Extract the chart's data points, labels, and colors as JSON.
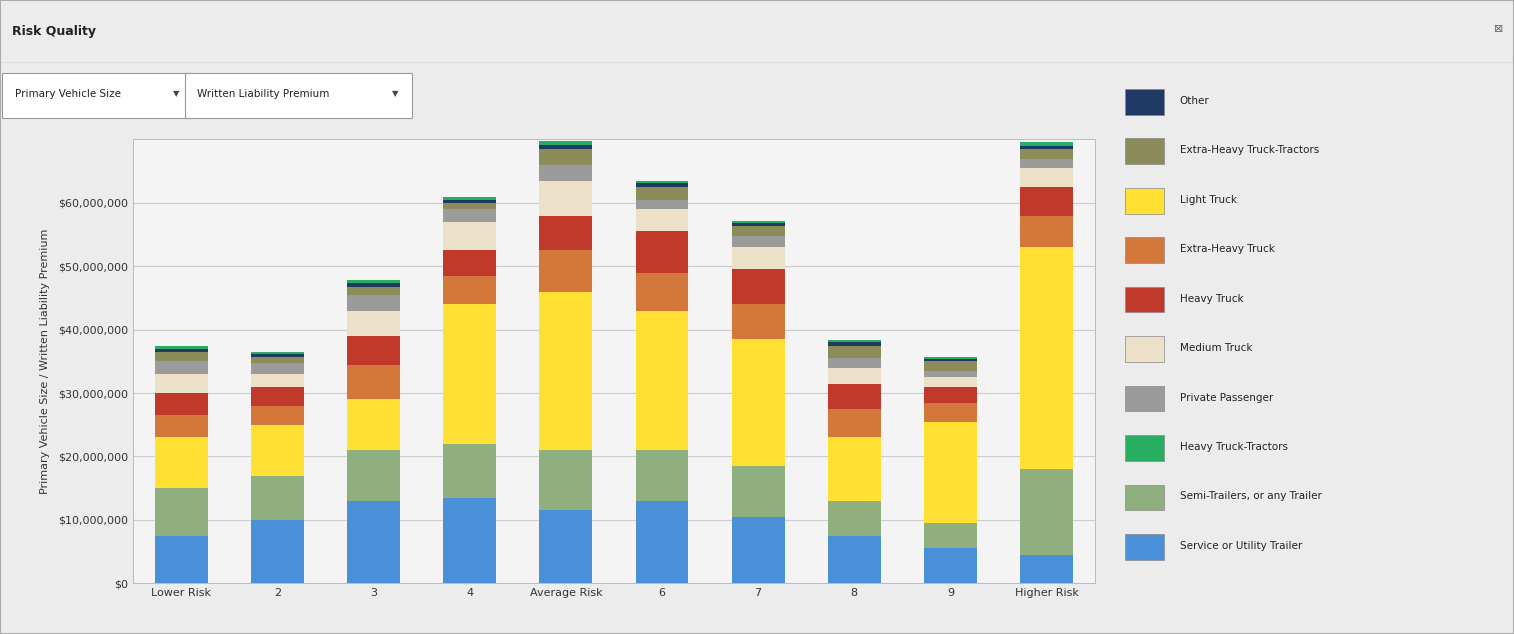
{
  "categories": [
    "Lower Risk",
    "2",
    "3",
    "4",
    "Average Risk",
    "6",
    "7",
    "8",
    "9",
    "Higher Risk"
  ],
  "series": [
    {
      "name": "Service or Utility Trailer",
      "color": "#4A90D9",
      "values": [
        7500000,
        10000000,
        13000000,
        13500000,
        11500000,
        13000000,
        10500000,
        7500000,
        5500000,
        4500000
      ]
    },
    {
      "name": "Semi-Trailers, or any Trailer",
      "color": "#8FAF7E",
      "values": [
        7500000,
        7000000,
        8000000,
        8500000,
        9500000,
        8000000,
        8000000,
        5500000,
        4000000,
        13500000
      ]
    },
    {
      "name": "Light Truck",
      "color": "#FFE033",
      "values": [
        8000000,
        8000000,
        8000000,
        22000000,
        25000000,
        22000000,
        20000000,
        10000000,
        16000000,
        35000000
      ]
    },
    {
      "name": "Extra-Heavy Truck",
      "color": "#D4773A",
      "values": [
        3500000,
        3000000,
        5500000,
        4500000,
        6500000,
        6000000,
        5500000,
        4500000,
        3000000,
        5000000
      ]
    },
    {
      "name": "Heavy Truck",
      "color": "#C0392B",
      "values": [
        3500000,
        3000000,
        4500000,
        4000000,
        5500000,
        6500000,
        5500000,
        4000000,
        2500000,
        4500000
      ]
    },
    {
      "name": "Medium Truck",
      "color": "#EDE0C8",
      "values": [
        3000000,
        2000000,
        4000000,
        4500000,
        5500000,
        3500000,
        3500000,
        2500000,
        1500000,
        3000000
      ]
    },
    {
      "name": "Private Passenger",
      "color": "#9B9B9B",
      "values": [
        2000000,
        1800000,
        2500000,
        2000000,
        2500000,
        1500000,
        1800000,
        1500000,
        1000000,
        1500000
      ]
    },
    {
      "name": "Extra-Heavy Truck-Tractors",
      "color": "#8C8C5A",
      "values": [
        1500000,
        900000,
        1200000,
        1000000,
        2500000,
        2000000,
        1500000,
        2000000,
        1500000,
        1500000
      ]
    },
    {
      "name": "Other",
      "color": "#1F3864",
      "values": [
        500000,
        400000,
        600000,
        500000,
        700000,
        600000,
        500000,
        500000,
        400000,
        500000
      ]
    },
    {
      "name": "Heavy Truck-Tractors",
      "color": "#27AE60",
      "values": [
        500000,
        400000,
        500000,
        400000,
        600000,
        400000,
        400000,
        400000,
        300000,
        600000
      ]
    }
  ],
  "title": "Risk Quality",
  "btn1": "Primary Vehicle Size",
  "btn2": "Written Liability Premium",
  "ylabel": "Primary Vehicle Size / Written Liability Premium",
  "ylim": [
    0,
    70000000
  ],
  "yticks": [
    0,
    10000000,
    20000000,
    30000000,
    40000000,
    50000000,
    60000000
  ],
  "ytick_labels": [
    "$0",
    "$10,000,000",
    "$20,000,000",
    "$30,000,000",
    "$40,000,000",
    "$50,000,000",
    "$60,000,000"
  ],
  "bg_color": "#ECECEC",
  "chart_bg": "#F4F4F4",
  "grid_color": "#CCCCCC",
  "bar_width": 0.55,
  "legend_order": [
    "Other",
    "Extra-Heavy Truck-Tractors",
    "Light Truck",
    "Extra-Heavy Truck",
    "Heavy Truck",
    "Medium Truck",
    "Private Passenger",
    "Heavy Truck-Tractors",
    "Semi-Trailers, or any Trailer",
    "Service or Utility Trailer"
  ]
}
